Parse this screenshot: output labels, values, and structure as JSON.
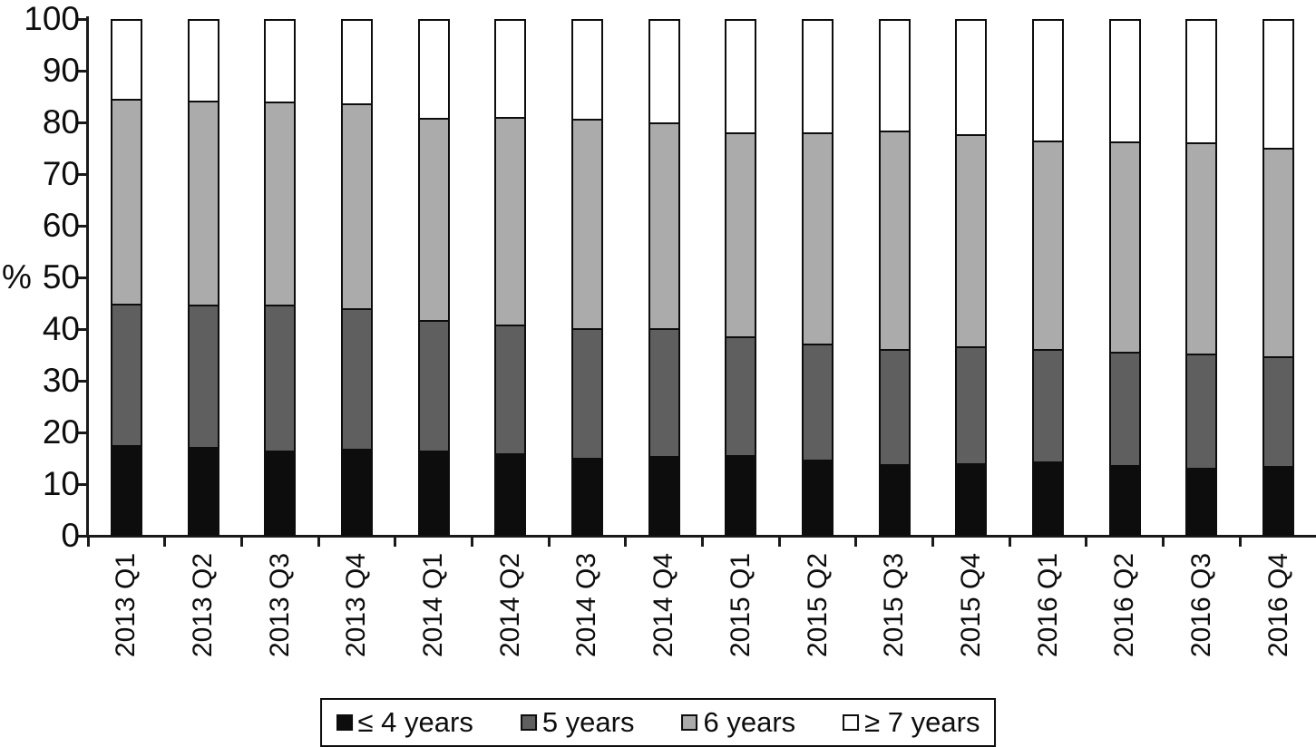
{
  "figure": {
    "y_axis_unit": "%"
  },
  "colors": {
    "axis": "#1a1a1a",
    "segment_le4": "#0d0d0d",
    "segment_5": "#5f5f5f",
    "segment_6": "#ababab",
    "segment_ge7": "#ffffff",
    "outline": "#0d0d0d",
    "background": "#ffffff"
  },
  "chart_data": {
    "type": "bar",
    "stacked": true,
    "grid": false,
    "legend_position": "bottom",
    "title": "",
    "xlabel": "",
    "ylabel": "%",
    "ylim": [
      0,
      100
    ],
    "yticks": [
      0,
      10,
      20,
      30,
      40,
      50,
      60,
      70,
      80,
      90,
      100
    ],
    "categories": [
      "2013 Q1",
      "2013 Q2",
      "2013 Q3",
      "2013 Q4",
      "2014 Q1",
      "2014 Q2",
      "2014 Q3",
      "2014 Q4",
      "2015 Q1",
      "2015 Q2",
      "2015 Q3",
      "2015 Q4",
      "2016 Q1",
      "2016 Q2",
      "2016 Q3",
      "2016 Q4"
    ],
    "series": [
      {
        "name": "≤ 4 years",
        "color": "#0d0d0d",
        "values": [
          17.2,
          16.8,
          16.1,
          16.5,
          16.1,
          15.5,
          14.6,
          15.0,
          15.1,
          14.2,
          13.4,
          13.6,
          13.9,
          13.2,
          12.7,
          13.0
        ]
      },
      {
        "name": "5 years",
        "color": "#5f5f5f",
        "values": [
          27.5,
          27.6,
          28.4,
          27.2,
          25.4,
          25.1,
          25.3,
          24.8,
          23.2,
          22.5,
          22.3,
          22.7,
          21.8,
          22.0,
          22.1,
          21.3
        ]
      },
      {
        "name": "6 years",
        "color": "#ababab",
        "values": [
          40.0,
          39.9,
          39.6,
          40.0,
          39.4,
          40.4,
          40.9,
          40.2,
          39.7,
          41.3,
          42.7,
          41.3,
          40.7,
          41.0,
          41.2,
          40.7
        ]
      },
      {
        "name": "≥ 7 years",
        "color": "#ffffff",
        "values": [
          15.3,
          15.7,
          15.9,
          16.3,
          19.1,
          19.0,
          19.2,
          20.0,
          22.0,
          22.0,
          21.6,
          22.4,
          23.6,
          23.8,
          24.0,
          25.0
        ]
      }
    ]
  },
  "legend": {
    "labels": [
      "≤ 4 years",
      "5 years",
      "6 years",
      "≥ 7 years"
    ]
  }
}
